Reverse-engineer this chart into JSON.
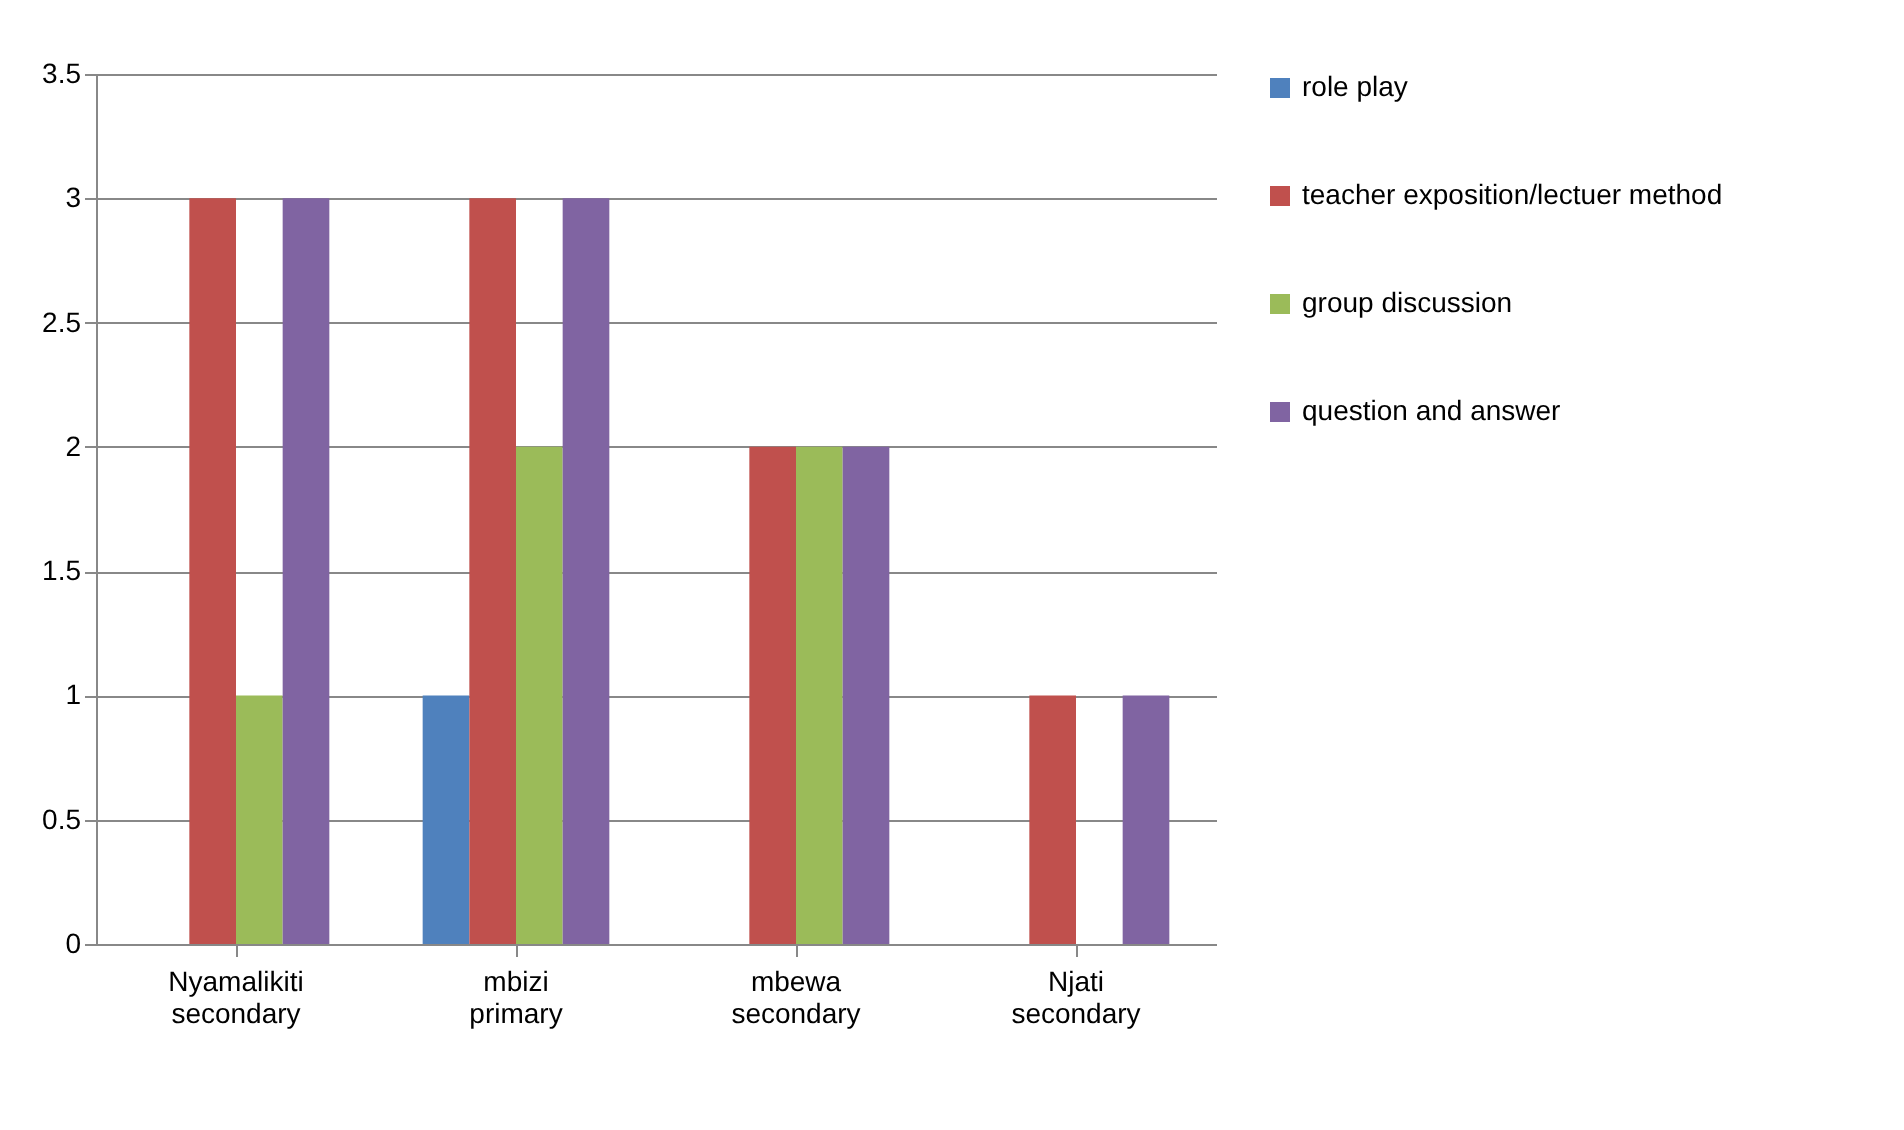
{
  "chart_data": {
    "type": "bar",
    "categories": [
      "Nyamalikiti secondary",
      "mbizi primary",
      "mbewa secondary",
      "Njati secondary"
    ],
    "series": [
      {
        "name": "role play",
        "color": "#4f81bd",
        "values": [
          0,
          1,
          0,
          0
        ]
      },
      {
        "name": "teacher exposition/lectuer method",
        "color": "#c0504d",
        "values": [
          3,
          3,
          2,
          1
        ]
      },
      {
        "name": "group discussion",
        "color": "#9bbb59",
        "values": [
          1,
          2,
          2,
          0
        ]
      },
      {
        "name": "question and answer",
        "color": "#8064a2",
        "values": [
          3,
          3,
          2,
          1
        ]
      }
    ],
    "ylim": [
      0,
      3.5
    ],
    "yticks": [
      0,
      0.5,
      1,
      1.5,
      2,
      2.5,
      3,
      3.5
    ],
    "grid": "y",
    "legend": "right"
  }
}
